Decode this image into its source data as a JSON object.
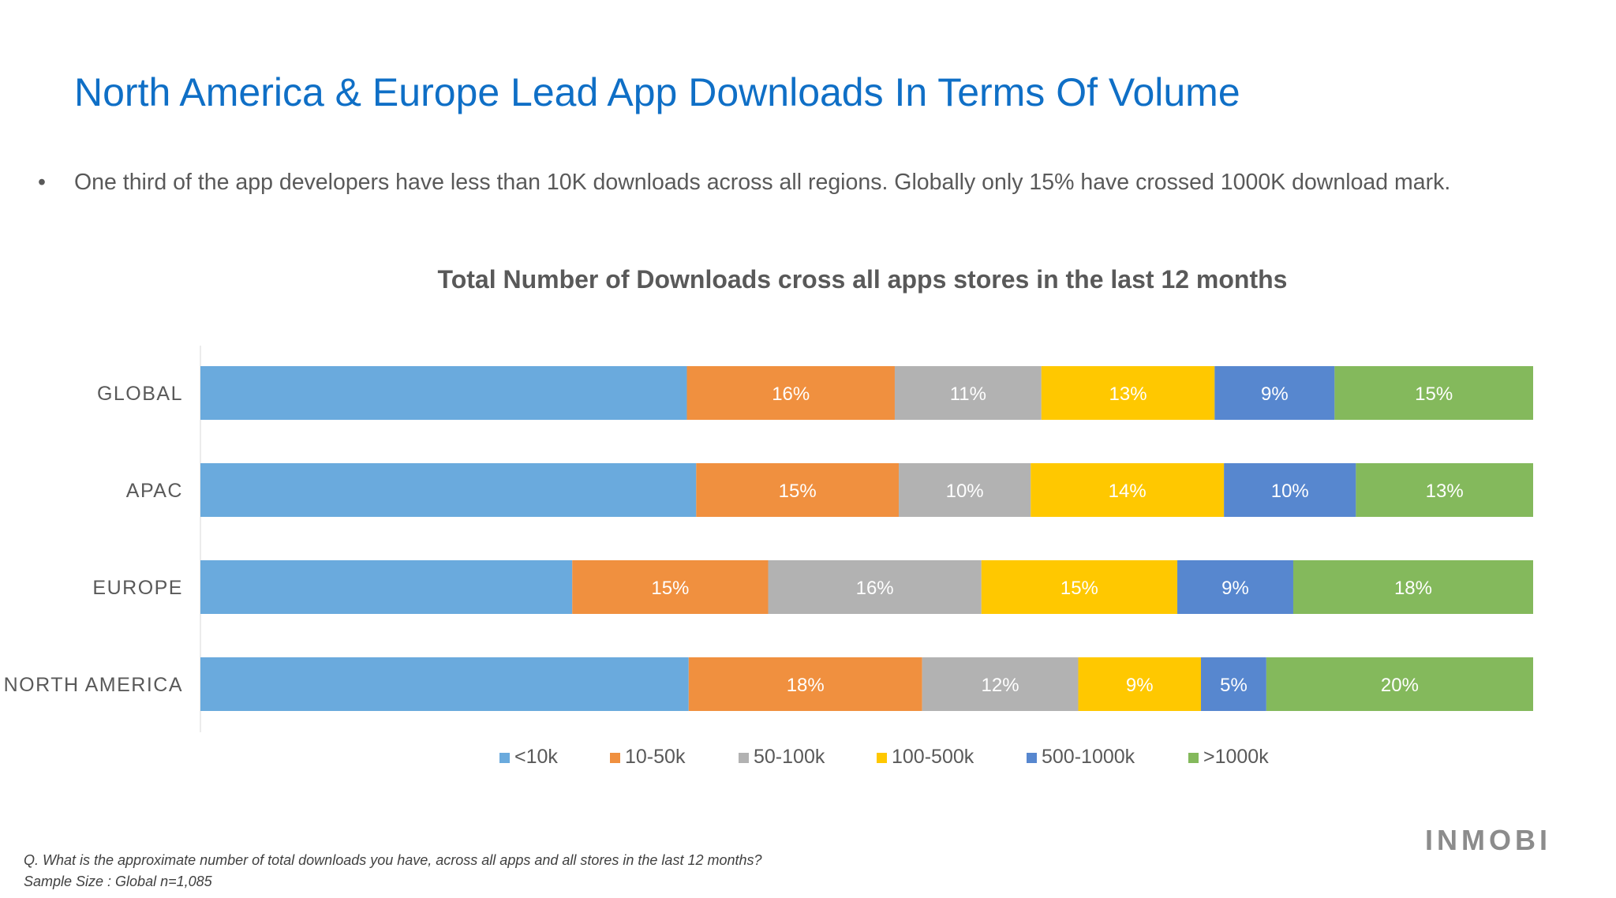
{
  "slide": {
    "title": "North America & Europe Lead App Downloads In Terms Of Volume",
    "bullet": "One third of the app developers have less than 10K downloads across all regions. Globally only 15% have crossed 1000K download mark.",
    "bullet_marker": "•",
    "footnote_question": "Q. What is the approximate number of total downloads you have, across all apps and all stores in the last 12 months?",
    "footnote_sample": "Sample Size :  Global n=1,085",
    "logo_text": "INMOBI"
  },
  "chart_data": {
    "type": "bar",
    "orientation": "horizontal",
    "stacked": true,
    "percent_stacked": true,
    "title": "Total Number of Downloads cross all apps stores in the last 12 months",
    "categories": [
      "GLOBAL",
      "APAC",
      "EUROPE",
      "NORTH AMERICA"
    ],
    "series": [
      {
        "name": "<10k",
        "color": "#6aaadd",
        "values": [
          36.5,
          37.2,
          27.9,
          36.6
        ],
        "labels": [
          "",
          "",
          "",
          ""
        ]
      },
      {
        "name": "10-50k",
        "color": "#f0903f",
        "values": [
          15.6,
          15.2,
          14.7,
          17.5
        ],
        "labels": [
          "16%",
          "15%",
          "15%",
          "18%"
        ]
      },
      {
        "name": "50-100k",
        "color": "#b2b2b2",
        "values": [
          11.0,
          9.9,
          16.0,
          11.7
        ],
        "labels": [
          "11%",
          "10%",
          "16%",
          "12%"
        ]
      },
      {
        "name": "100-500k",
        "color": "#ffc800",
        "values": [
          13.0,
          14.5,
          14.7,
          9.2
        ],
        "labels": [
          "13%",
          "14%",
          "15%",
          "9%"
        ]
      },
      {
        "name": "500-1000k",
        "color": "#5787cf",
        "values": [
          9.0,
          9.9,
          8.7,
          4.9
        ],
        "labels": [
          "9%",
          "10%",
          "9%",
          "5%"
        ]
      },
      {
        "name": ">1000k",
        "color": "#84b95c",
        "values": [
          14.9,
          13.3,
          18.0,
          20.0
        ],
        "labels": [
          "15%",
          "13%",
          "18%",
          "20%"
        ]
      }
    ],
    "xlim": [
      0,
      100
    ],
    "legend_position": "bottom",
    "grid": false,
    "label_color": "#ffffff",
    "axis_label_color": "#595959"
  }
}
